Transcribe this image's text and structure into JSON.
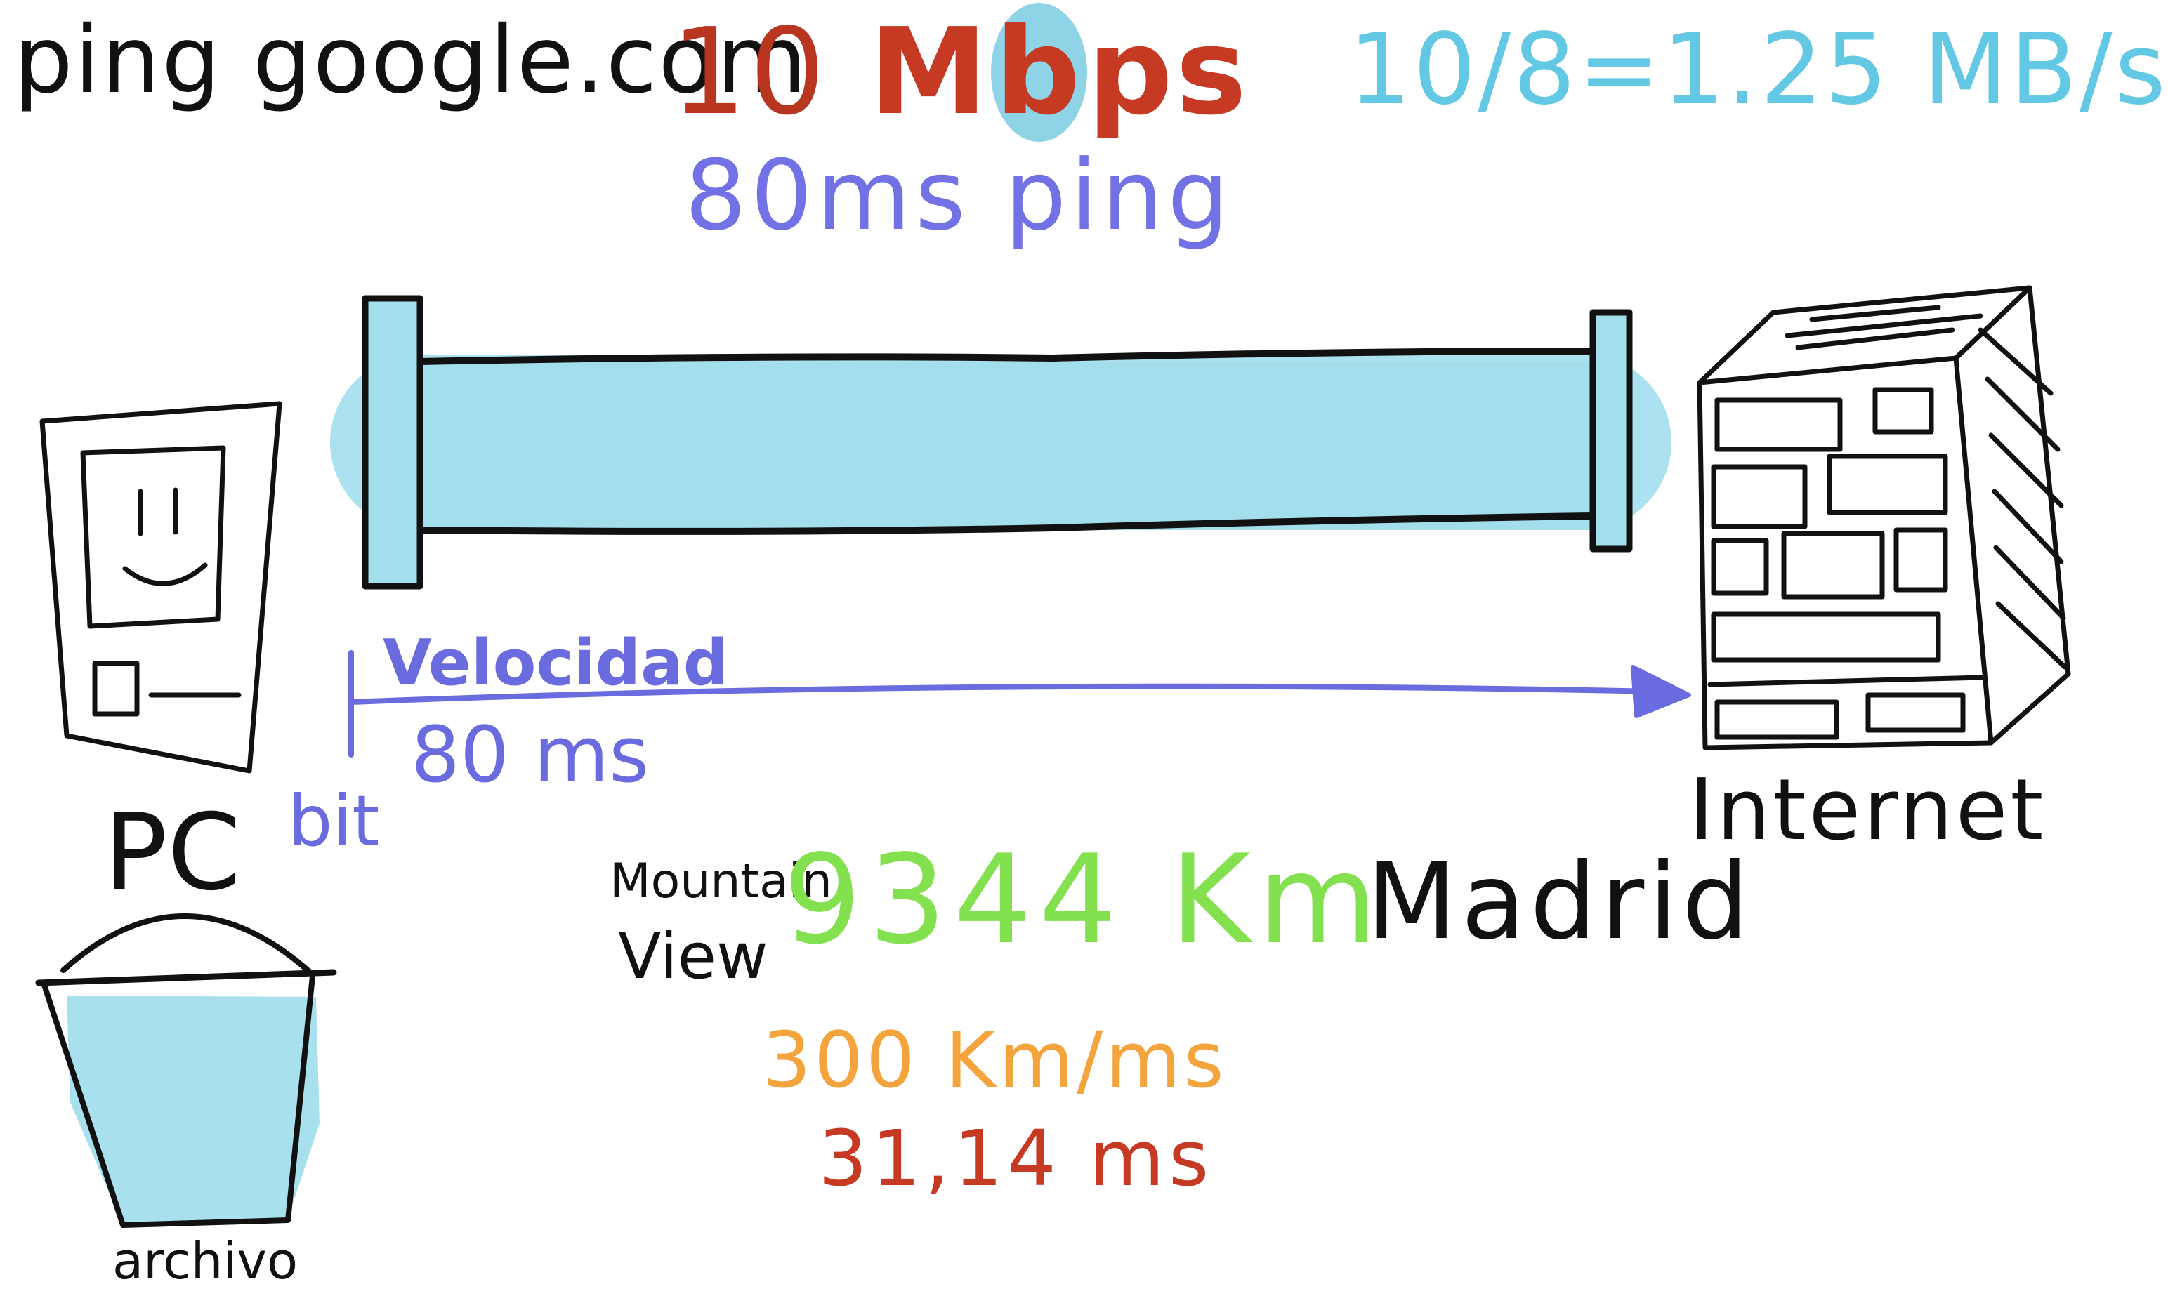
{
  "texts": {
    "ping_command": "ping google.com",
    "bandwidth_number": "10",
    "bandwidth_unit_b": "M",
    "bandwidth_unit_hl": "b",
    "bandwidth_unit_rest": "ps",
    "conversion": "10/8=1.25 MB/s",
    "latency": "80ms ping",
    "velocidad": "Velocidad",
    "travel_time": "80 ms",
    "bit": "bit",
    "pc": "PC",
    "archivo": "archivo",
    "internet": "Internet",
    "mountain": "Mountain",
    "view": "View",
    "distance": "9344 Km",
    "madrid": "Madrid",
    "light_speed": "300 Km/ms",
    "result": "31,14 ms"
  },
  "icons": {
    "pc": "pc-tower-icon",
    "server": "server-building-icon",
    "bucket": "bucket-icon",
    "pipe": "pipe-icon",
    "arrow": "arrow-right-icon"
  },
  "colors": {
    "pipe_fill": "#a3deed",
    "ink": "#111111",
    "blue_label": "#6b6be0",
    "bandwidth": "#c63a23",
    "conversion": "#62c8e3",
    "distance": "#83e04f",
    "light_speed": "#f3a43c"
  }
}
